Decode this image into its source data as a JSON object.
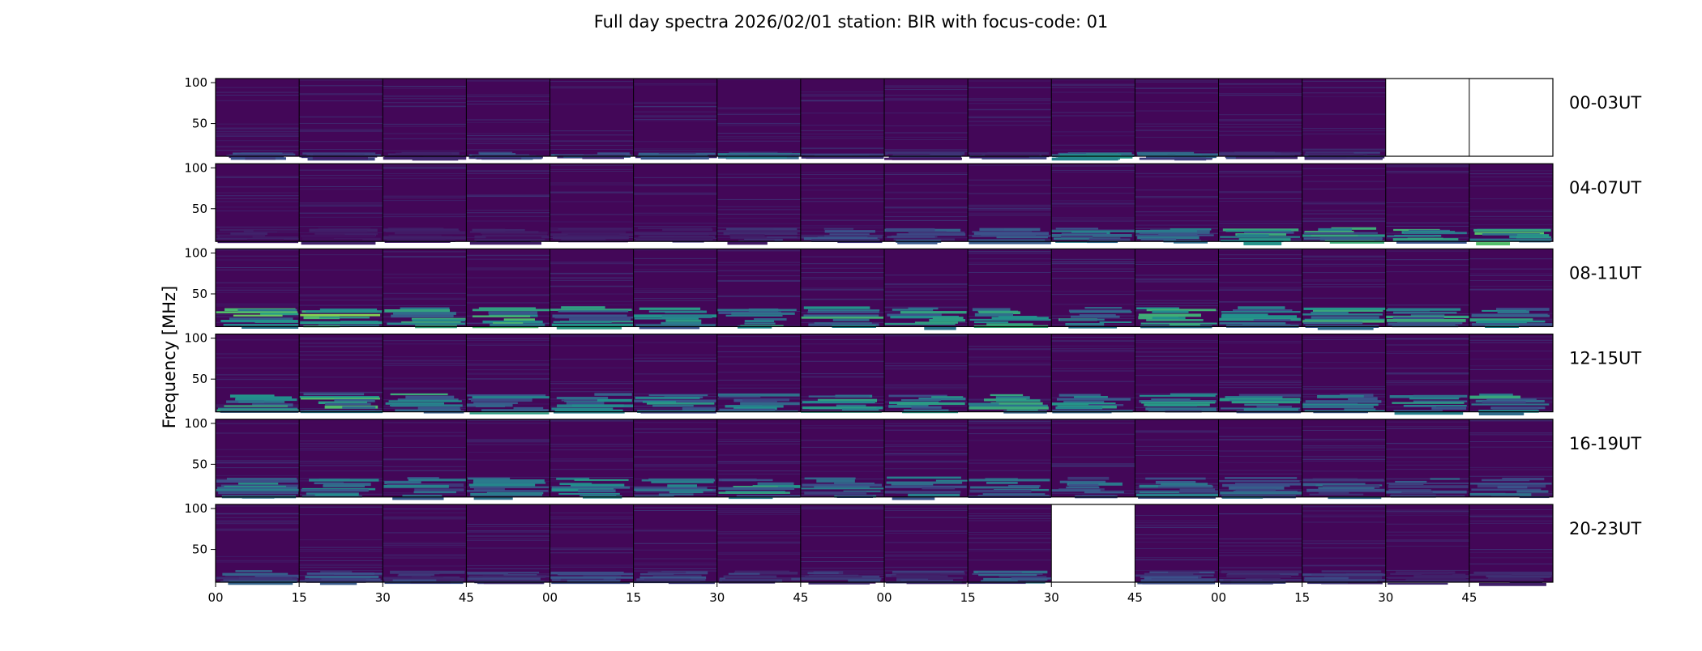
{
  "chart_data": {
    "type": "heatmap",
    "title": "Full day spectra 2026/02/01 station: BIR with focus-code: 01",
    "ylabel": "Frequency [MHz]",
    "ylim": [
      10,
      105
    ],
    "y_ticks": [
      "50",
      "100"
    ],
    "x_ticks": [
      "00",
      "15",
      "30",
      "45",
      "00",
      "15",
      "30",
      "45",
      "00",
      "15",
      "30",
      "45",
      "00",
      "15",
      "30",
      "45"
    ],
    "grid": false,
    "colormap": "viridis",
    "rows": [
      {
        "label": "00-03UT",
        "intensity": [
          0.25,
          0.2,
          0.15,
          0.3,
          0.35,
          0.3,
          0.4,
          0.2,
          0.15,
          0.2,
          0.55,
          0.35,
          0.2,
          0.2
        ],
        "band_mhz": [
          0,
          16
        ],
        "missing": [
          14,
          15
        ]
      },
      {
        "label": "04-07UT",
        "intensity": [
          0.1,
          0.1,
          0.1,
          0.1,
          0.1,
          0.15,
          0.15,
          0.25,
          0.3,
          0.3,
          0.4,
          0.5,
          0.55,
          0.6,
          0.6,
          0.65
        ],
        "band_mhz": [
          0,
          28
        ],
        "missing": []
      },
      {
        "label": "08-11UT",
        "intensity": [
          0.7,
          0.75,
          0.6,
          0.65,
          0.55,
          0.5,
          0.55,
          0.6,
          0.55,
          0.6,
          0.55,
          0.6,
          0.5,
          0.6,
          0.55,
          0.55
        ],
        "band_mhz": [
          0,
          35
        ],
        "missing": []
      },
      {
        "label": "12-15UT",
        "intensity": [
          0.55,
          0.65,
          0.6,
          0.5,
          0.5,
          0.5,
          0.5,
          0.55,
          0.5,
          0.6,
          0.5,
          0.5,
          0.5,
          0.5,
          0.5,
          0.55
        ],
        "band_mhz": [
          0,
          33
        ],
        "missing": []
      },
      {
        "label": "16-19UT",
        "intensity": [
          0.5,
          0.45,
          0.4,
          0.45,
          0.55,
          0.45,
          0.55,
          0.4,
          0.4,
          0.4,
          0.4,
          0.4,
          0.35,
          0.35,
          0.35,
          0.4
        ],
        "band_mhz": [
          0,
          35
        ],
        "missing": []
      },
      {
        "label": "20-23UT",
        "intensity": [
          0.3,
          0.3,
          0.25,
          0.2,
          0.25,
          0.25,
          0.2,
          0.2,
          0.2,
          0.35,
          0.0,
          0.25,
          0.2,
          0.2,
          0.15,
          0.15
        ],
        "band_mhz": [
          0,
          25
        ],
        "missing": [
          10
        ]
      }
    ]
  }
}
